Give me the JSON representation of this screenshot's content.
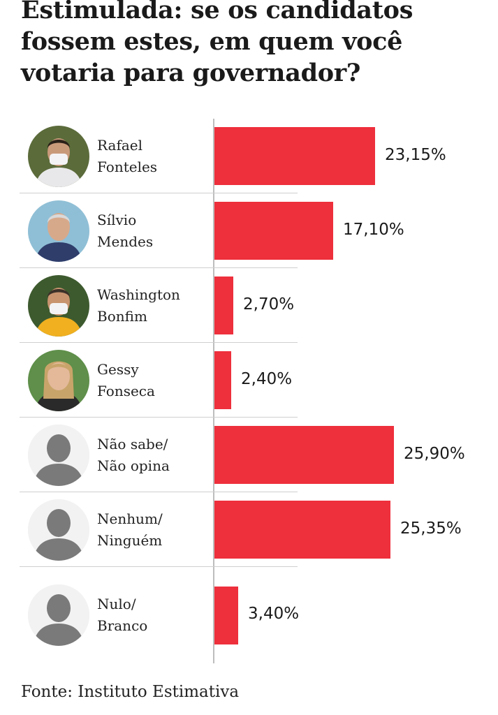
{
  "title": "Estimulada: se os candidatos fossem estes, em quem você votaria para governador?",
  "source": "Fonte: Instituto Estimativa",
  "colors": {
    "bar": "#ee2f3c",
    "axis": "#bdbdbd",
    "separator": "#cfcfcf"
  },
  "chart_data": {
    "type": "bar",
    "orientation": "horizontal",
    "categories": [
      "Rafael\nFonteles",
      "Sílvio\nMendes",
      "Washington\nBonfim",
      "Gessy\nFonseca",
      "Não sabe/\nNão opina",
      "Nenhum/\nNinguém",
      "Nulo/\nBranco"
    ],
    "values": [
      23.15,
      17.1,
      2.7,
      2.4,
      25.9,
      25.35,
      3.4
    ],
    "value_labels": [
      "23,15%",
      "17,10%",
      "2,70%",
      "2,40%",
      "25,90%",
      "25,35%",
      "3,40%"
    ],
    "avatars": [
      "photo-rafael-fonteles",
      "photo-silvio-mendes",
      "photo-washington-bonfim",
      "photo-gessy-fonseca",
      "person-placeholder-icon",
      "person-placeholder-icon",
      "person-placeholder-icon"
    ],
    "unit": "%",
    "xlim": [
      0,
      25.9
    ]
  }
}
